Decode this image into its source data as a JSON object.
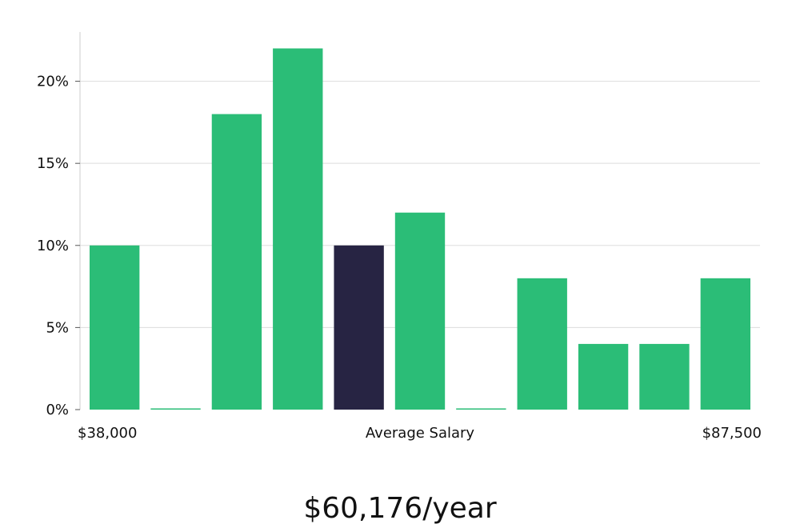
{
  "chart_data": {
    "type": "bar",
    "values": [
      10,
      0,
      18,
      22,
      10,
      12,
      0,
      8,
      4,
      4,
      8
    ],
    "highlight_index": 4,
    "ylim": [
      0,
      23
    ],
    "y_ticks": [
      0,
      5,
      10,
      15,
      20
    ],
    "y_tick_format": "%",
    "x_min_label": "$38,000",
    "x_center_label": "Average Salary",
    "x_max_label": "$87,500",
    "grid": true,
    "colors": {
      "bar": "#2bbd77",
      "highlight": "#272443",
      "grid": "#dddddd",
      "axis": "#cccccc"
    }
  },
  "summary": {
    "salary_text": "$60,176/year"
  }
}
